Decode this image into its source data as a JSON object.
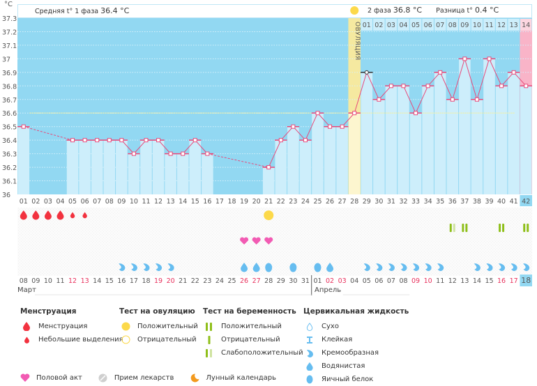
{
  "header": {
    "unit": "°C",
    "phase1_label": "Средняя t° 1 фаза",
    "phase1_value": "36.4 °C",
    "phase2_label": "2 фаза",
    "phase2_value": "36.8 °C",
    "diff_label": "Разница t°",
    "diff_value": "0.4 °C",
    "ovulation_label": "ОВУЛЯЦИЯ"
  },
  "colors": {
    "phase1_bg": "#92d8f2",
    "phase2_bg": "#92d8f2",
    "bar_fill": "#cdeefb",
    "ovulation_col": "#f5e9a0",
    "ovulation_col_light": "#fdf6cf",
    "pink_col": "#f9b4c8",
    "line": "#e8497a",
    "cover_line": "#f2f0a6",
    "menstruation": "#f2323f",
    "heart": "#f25bb3",
    "fluid": "#66bdf0",
    "ovulation_test": "#fcd94a",
    "preg_test": "#8fbf1a",
    "preg_test_weak": "#cfe3a0",
    "weekend": "#e8305c"
  },
  "chart_data": {
    "type": "line",
    "title": "",
    "ylabel": "°C",
    "ylim": [
      36,
      37.3
    ],
    "yticks": [
      "36",
      "36.1",
      "36.2",
      "36.3",
      "36.4",
      "36.5",
      "36.6",
      "36.7",
      "36.8",
      "36.9",
      "37",
      "37.1",
      "37.2",
      "37.3"
    ],
    "cycle_days": [
      "01",
      "02",
      "03",
      "04",
      "05",
      "06",
      "07",
      "08",
      "09",
      "10",
      "11",
      "12",
      "13",
      "14",
      "15",
      "16",
      "17",
      "18",
      "19",
      "20",
      "21",
      "22",
      "23",
      "24",
      "25",
      "26",
      "27",
      "28",
      "29",
      "30",
      "31",
      "32",
      "33",
      "34",
      "35",
      "36",
      "37",
      "38",
      "39",
      "40",
      "41",
      "42"
    ],
    "temperatures": [
      36.5,
      null,
      null,
      null,
      36.4,
      36.4,
      36.4,
      36.4,
      36.4,
      36.3,
      36.4,
      36.4,
      36.3,
      36.3,
      36.4,
      36.3,
      null,
      null,
      null,
      null,
      36.2,
      36.4,
      36.5,
      36.4,
      36.6,
      36.5,
      36.5,
      36.6,
      36.9,
      36.7,
      36.8,
      36.8,
      36.6,
      36.8,
      36.9,
      36.7,
      37.0,
      36.7,
      37.0,
      36.8,
      36.9,
      36.8
    ],
    "cover_line": 36.6,
    "ovulation_day": 28,
    "luteal_days": [
      "01",
      "02",
      "03",
      "04",
      "05",
      "06",
      "07",
      "08",
      "09",
      "10",
      "11",
      "12",
      "13",
      "14"
    ],
    "current_day": 42
  },
  "calendar": {
    "dates": [
      "08",
      "09",
      "10",
      "11",
      "12",
      "13",
      "14",
      "15",
      "16",
      "17",
      "18",
      "19",
      "20",
      "21",
      "22",
      "23",
      "24",
      "25",
      "26",
      "27",
      "28",
      "29",
      "30",
      "31",
      "01",
      "02",
      "03",
      "04",
      "05",
      "06",
      "07",
      "08",
      "09",
      "10",
      "11",
      "12",
      "13",
      "14",
      "15",
      "16",
      "17",
      "18"
    ],
    "weekend": [
      false,
      false,
      false,
      false,
      true,
      true,
      false,
      false,
      false,
      false,
      false,
      true,
      true,
      false,
      false,
      false,
      false,
      false,
      true,
      true,
      false,
      false,
      false,
      false,
      false,
      true,
      true,
      false,
      false,
      false,
      false,
      false,
      true,
      true,
      false,
      false,
      false,
      false,
      false,
      true,
      true,
      false
    ],
    "months": [
      "Март",
      "Апрель"
    ]
  },
  "markers": {
    "menstruation": [
      "heavy",
      "heavy",
      "heavy",
      "heavy",
      "light",
      "light",
      null,
      null,
      null,
      null,
      null,
      null,
      null,
      null,
      null,
      null,
      null,
      null,
      null,
      null,
      null,
      null,
      null,
      null,
      null,
      null,
      null,
      null,
      null,
      null,
      null,
      null,
      null,
      null,
      null,
      null,
      null,
      null,
      null,
      null,
      null,
      null
    ],
    "ovulation_test": [
      null,
      null,
      null,
      null,
      null,
      null,
      null,
      null,
      null,
      null,
      null,
      null,
      null,
      null,
      null,
      null,
      null,
      null,
      null,
      null,
      "positive",
      null,
      null,
      null,
      null,
      null,
      null,
      null,
      null,
      null,
      null,
      null,
      null,
      null,
      null,
      null,
      null,
      null,
      null,
      null,
      null,
      null
    ],
    "pregnancy_test": [
      null,
      null,
      null,
      null,
      null,
      null,
      null,
      null,
      null,
      null,
      null,
      null,
      null,
      null,
      null,
      null,
      null,
      null,
      null,
      null,
      null,
      null,
      null,
      null,
      null,
      null,
      null,
      null,
      null,
      null,
      null,
      null,
      null,
      null,
      null,
      "weak",
      "positive",
      null,
      null,
      "positive",
      null,
      "positive"
    ],
    "intercourse": [
      null,
      null,
      null,
      null,
      null,
      null,
      null,
      null,
      null,
      null,
      null,
      null,
      null,
      null,
      null,
      null,
      null,
      null,
      true,
      true,
      true,
      null,
      null,
      null,
      null,
      null,
      null,
      null,
      null,
      null,
      null,
      null,
      null,
      null,
      null,
      null,
      null,
      null,
      null,
      null,
      null,
      null
    ],
    "fluid": [
      null,
      null,
      null,
      null,
      null,
      null,
      null,
      null,
      "creamy",
      "creamy",
      "creamy",
      "creamy",
      "creamy",
      null,
      null,
      null,
      null,
      null,
      "watery",
      "watery",
      "eggwhite",
      null,
      "eggwhite",
      null,
      "eggwhite",
      "watery",
      null,
      null,
      "creamy",
      "creamy",
      "creamy",
      "creamy",
      "creamy",
      "creamy",
      "creamy",
      null,
      null,
      "creamy",
      "creamy",
      "creamy",
      "creamy",
      "creamy"
    ]
  },
  "legend": {
    "menstruation": {
      "title": "Менструация",
      "items": [
        "Менструация",
        "Небольшие выделения"
      ]
    },
    "ovulation_test": {
      "title": "Тест на овуляцию",
      "items": [
        "Положительный",
        "Отрицательный"
      ]
    },
    "pregnancy_test": {
      "title": "Тест на беременность",
      "items": [
        "Положительный",
        "Отрицательный",
        "Слабоположительный"
      ]
    },
    "fluid": {
      "title": "Цервикальная жидкость",
      "items": [
        "Сухо",
        "Клейкая",
        "Кремообразная",
        "Водянистая",
        "Яичный белок"
      ]
    },
    "bottom": [
      "Половой акт",
      "Прием лекарств",
      "Лунный календарь"
    ]
  }
}
